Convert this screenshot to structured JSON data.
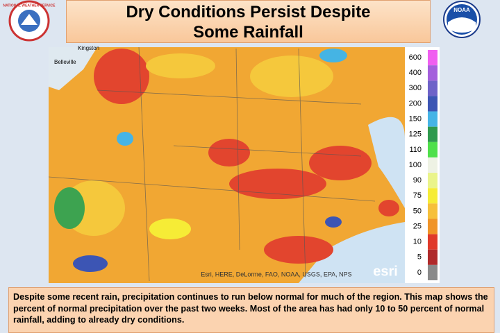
{
  "header": {
    "title": "Dry Conditions Persist Despite Some Rainfall",
    "logo_left": "NATIONAL WEATHER SERVICE",
    "logo_right": "NOAA"
  },
  "map": {
    "places": [
      "Kingston",
      "Belleville"
    ],
    "attribution": "Esri, HERE, DeLorme, FAO, NOAA, USGS, EPA, NPS",
    "brand": "esri"
  },
  "legend": [
    {
      "value": 600,
      "color": "#f05ff0"
    },
    {
      "value": 400,
      "color": "#a45fdc"
    },
    {
      "value": 300,
      "color": "#6e62c8"
    },
    {
      "value": 200,
      "color": "#3c55b4"
    },
    {
      "value": 150,
      "color": "#46b4e6"
    },
    {
      "value": 125,
      "color": "#2f9a4e"
    },
    {
      "value": 110,
      "color": "#4fe04a"
    },
    {
      "value": 100,
      "color": "#eef2e4"
    },
    {
      "value": 90,
      "color": "#eaf48a"
    },
    {
      "value": 75,
      "color": "#f6ec36"
    },
    {
      "value": 50,
      "color": "#f6c03a"
    },
    {
      "value": 25,
      "color": "#f09428"
    },
    {
      "value": 10,
      "color": "#e0392a"
    },
    {
      "value": 5,
      "color": "#b02a2a"
    },
    {
      "value": 0,
      "color": "#8a8a8a"
    }
  ],
  "caption": "Despite some recent rain, precipitation continues to run below normal for much of the region. This map shows the percent of normal precipitation over the past two weeks.  Most of the area has had only 10 to 50 percent of normal rainfall, adding to already dry conditions."
}
